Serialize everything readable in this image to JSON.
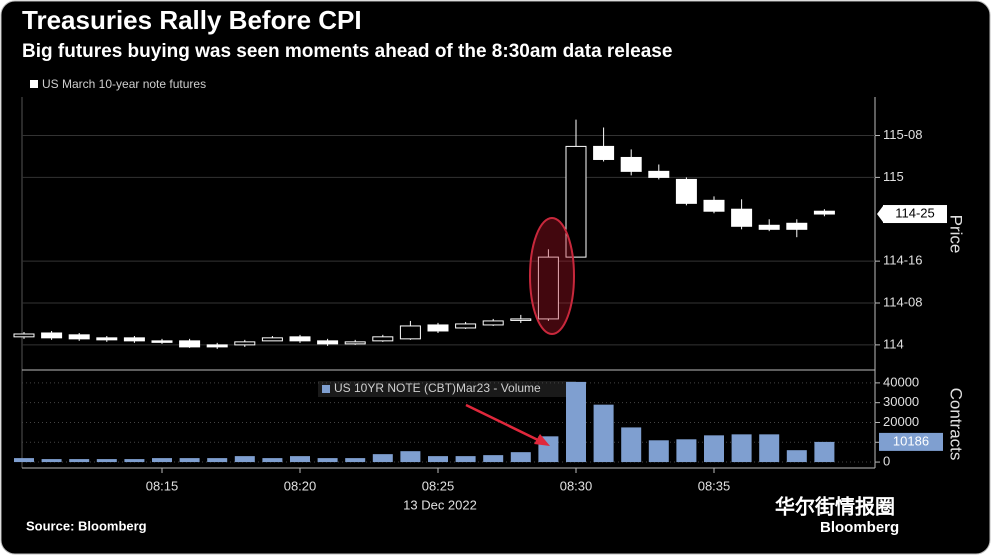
{
  "chart_data": {
    "type": "candlestick",
    "title": "Treasuries Rally Before CPI",
    "subtitle": "Big futures buying was seen moments ahead of the 8:30am data release",
    "legend": "US March 10-year note futures",
    "ylabel": "Price",
    "categories": [
      null,
      null,
      null,
      null,
      null,
      "08:15",
      null,
      null,
      null,
      null,
      "08:20",
      null,
      null,
      null,
      null,
      "08:25",
      null,
      null,
      null,
      null,
      "08:30",
      null,
      null,
      null,
      null,
      "08:35",
      null,
      null,
      null,
      null
    ],
    "date_label": "13 Dec 2022",
    "open": [
      114.048,
      114.071,
      114.06,
      114.042,
      114.042,
      114.024,
      114.024,
      114.0,
      114.0,
      114.024,
      114.048,
      114.024,
      114.006,
      114.024,
      114.036,
      114.119,
      114.101,
      114.119,
      114.149,
      114.155,
      114.524,
      115.185,
      115.119,
      115.036,
      114.988,
      114.863,
      114.81,
      114.714,
      114.726,
      114.798
    ],
    "high": [
      114.077,
      114.083,
      114.071,
      114.053,
      114.053,
      114.036,
      114.036,
      114.012,
      114.03,
      114.053,
      114.06,
      114.036,
      114.03,
      114.06,
      114.143,
      114.131,
      114.137,
      114.155,
      114.179,
      114.571,
      115.345,
      115.298,
      115.167,
      115.077,
      115.0,
      114.887,
      114.869,
      114.75,
      114.75,
      114.81
    ],
    "low": [
      114.036,
      114.03,
      114.024,
      114.018,
      114.012,
      114.006,
      113.982,
      113.976,
      113.988,
      114.03,
      114.012,
      113.994,
      114.0,
      114.018,
      114.03,
      114.071,
      114.095,
      114.113,
      114.131,
      114.143,
      114.524,
      115.095,
      115.012,
      114.988,
      114.833,
      114.786,
      114.69,
      114.679,
      114.643,
      114.768
    ],
    "close": [
      114.065,
      114.042,
      114.036,
      114.03,
      114.024,
      114.018,
      113.988,
      113.988,
      114.018,
      114.042,
      114.024,
      114.006,
      114.018,
      114.048,
      114.113,
      114.083,
      114.125,
      114.143,
      114.155,
      114.524,
      115.185,
      115.107,
      115.036,
      115.0,
      114.845,
      114.798,
      114.708,
      114.69,
      114.69,
      114.78125
    ],
    "color": "#ffffff",
    "ylim": [
      113.85,
      115.48
    ],
    "yticks": [
      114,
      {
        "value": 114.25,
        "label": "114-08"
      },
      {
        "value": 114.5,
        "label": "114-16"
      },
      115,
      {
        "value": 115.25,
        "label": "115-08"
      }
    ],
    "last_price": {
      "value": 114.78125,
      "label": "114-25"
    },
    "grid": true,
    "volume": {
      "name": "US 10YR NOTE (CBT)Mar23 - Volume",
      "color": "#7f9fd0",
      "ylabel": "Contracts",
      "values": [
        2000,
        1500,
        1500,
        1500,
        1500,
        2000,
        2000,
        2000,
        3000,
        2000,
        3000,
        2000,
        2000,
        4000,
        5500,
        3000,
        3000,
        3500,
        5000,
        13000,
        40500,
        29000,
        17500,
        11000,
        11500,
        13500,
        14000,
        14000,
        6000,
        10186
      ],
      "ylim": [
        -3000,
        45500
      ],
      "yticks": [
        0,
        10000,
        20000,
        30000,
        40000
      ]
    },
    "source": "Source: Bloomberg",
    "logo": "Bloomberg",
    "watermark": "华尔街情报圈"
  }
}
